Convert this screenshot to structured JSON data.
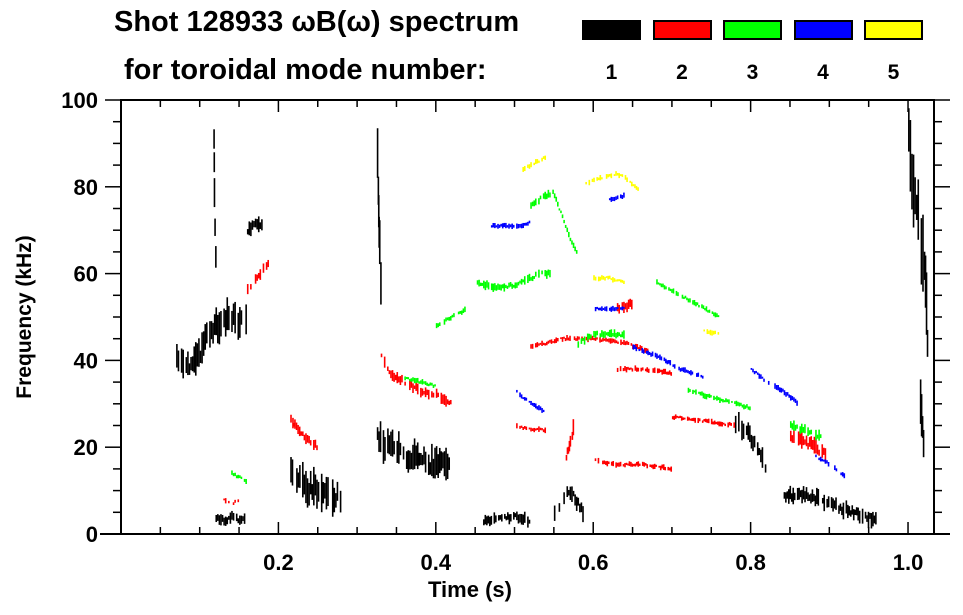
{
  "chart_data": {
    "type": "scatter",
    "title": "Shot 128933 ωB(ω) spectrum",
    "subtitle": "for toroidal mode number:",
    "xlabel": "Time (s)",
    "ylabel": "Frequency (kHz)",
    "xlim": [
      0,
      1.033
    ],
    "ylim": [
      0,
      100
    ],
    "xticks": [
      "0.2",
      "0.4",
      "0.6",
      "0.8",
      "1.0"
    ],
    "xtick_values": [
      0.2,
      0.4,
      0.6,
      0.8,
      1.0
    ],
    "yticks": [
      "0",
      "20",
      "40",
      "60",
      "80",
      "100"
    ],
    "ytick_values": [
      0,
      20,
      40,
      60,
      80,
      100
    ],
    "grid": false,
    "legend": {
      "placement": "top-right",
      "entries": [
        {
          "label": "1",
          "color": "#000000"
        },
        {
          "label": "2",
          "color": "#ff0000"
        },
        {
          "label": "3",
          "color": "#00ff00"
        },
        {
          "label": "4",
          "color": "#0000ff"
        },
        {
          "label": "5",
          "color": "#ffff00"
        }
      ]
    },
    "series": [
      {
        "name": "1",
        "color": "#000000",
        "tracks": [
          {
            "t": [
              0.07,
              0.09,
              0.1,
              0.11,
              0.12,
              0.13,
              0.14,
              0.15,
              0.16
            ],
            "f": [
              40,
              39,
              42,
              46,
              48,
              49,
              50,
              48,
              51
            ],
            "spread": 6
          },
          {
            "t": [
              0.117,
              0.118,
              0.12
            ],
            "f": [
              95,
              75,
              60
            ],
            "spread": 10
          },
          {
            "t": [
              0.16,
              0.17,
              0.18
            ],
            "f": [
              70,
              71,
              72
            ],
            "spread": 3
          },
          {
            "t": [
              0.12,
              0.13,
              0.14,
              0.15,
              0.16
            ],
            "f": [
              4,
              3,
              4,
              3,
              4
            ],
            "spread": 2
          },
          {
            "t": [
              0.215,
              0.23,
              0.25,
              0.27,
              0.28
            ],
            "f": [
              14,
              11,
              10,
              9,
              9
            ],
            "spread": 7
          },
          {
            "t": [
              0.325,
              0.327,
              0.33
            ],
            "f": [
              88,
              70,
              50
            ],
            "spread": 12
          },
          {
            "t": [
              0.325,
              0.34,
              0.36,
              0.38,
              0.4,
              0.42
            ],
            "f": [
              22,
              20,
              18,
              17,
              16,
              15
            ],
            "spread": 6
          },
          {
            "t": [
              0.55,
              0.56,
              0.57,
              0.58,
              0.59
            ],
            "f": [
              5,
              8,
              10,
              7,
              4
            ],
            "spread": 3
          },
          {
            "t": [
              0.46,
              0.5,
              0.52
            ],
            "f": [
              3,
              4,
              3
            ],
            "spread": 2
          },
          {
            "t": [
              0.78,
              0.8,
              0.82
            ],
            "f": [
              26,
              22,
              15
            ],
            "spread": 4
          },
          {
            "t": [
              0.84,
              0.87,
              0.9,
              0.93,
              0.96
            ],
            "f": [
              9,
              9,
              7,
              5,
              3
            ],
            "spread": 3
          },
          {
            "t": [
              1.0,
              1.01,
              1.02,
              1.025
            ],
            "f": [
              90,
              75,
              60,
              40
            ],
            "spread": 14
          },
          {
            "t": [
              1.015,
              1.02
            ],
            "f": [
              30,
              20
            ],
            "spread": 8
          }
        ]
      },
      {
        "name": "2",
        "color": "#ff0000",
        "tracks": [
          {
            "t": [
              0.16,
              0.17,
              0.18,
              0.19
            ],
            "f": [
              56,
              59,
              61,
              63
            ],
            "spread": 2
          },
          {
            "t": [
              0.13,
              0.14,
              0.15
            ],
            "f": [
              8,
              7,
              8
            ],
            "spread": 1
          },
          {
            "t": [
              0.215,
              0.22,
              0.23,
              0.24,
              0.25
            ],
            "f": [
              27,
              25,
              23,
              21,
              20
            ],
            "spread": 2
          },
          {
            "t": [
              0.33,
              0.34,
              0.36,
              0.38,
              0.4,
              0.42
            ],
            "f": [
              41,
              37,
              35,
              33,
              32,
              30
            ],
            "spread": 2
          },
          {
            "t": [
              0.5,
              0.52,
              0.54
            ],
            "f": [
              25,
              24,
              24
            ],
            "spread": 1
          },
          {
            "t": [
              0.52,
              0.54,
              0.56,
              0.6,
              0.64,
              0.67
            ],
            "f": [
              43,
              44,
              45,
              45,
              44,
              42
            ],
            "spread": 1
          },
          {
            "t": [
              0.565,
              0.57,
              0.575
            ],
            "f": [
              18,
              21,
              25
            ],
            "spread": 3
          },
          {
            "t": [
              0.6,
              0.63,
              0.66,
              0.7
            ],
            "f": [
              17,
              16,
              16,
              15
            ],
            "spread": 1
          },
          {
            "t": [
              0.63,
              0.66,
              0.7
            ],
            "f": [
              38,
              38,
              37
            ],
            "spread": 1
          },
          {
            "t": [
              0.7,
              0.74,
              0.78
            ],
            "f": [
              27,
              26,
              25
            ],
            "spread": 1
          },
          {
            "t": [
              0.85,
              0.87,
              0.89,
              0.9
            ],
            "f": [
              22,
              21,
              19,
              16
            ],
            "spread": 3
          },
          {
            "t": [
              0.63,
              0.65
            ],
            "f": [
              52,
              53
            ],
            "spread": 2
          }
        ]
      },
      {
        "name": "3",
        "color": "#00ff00",
        "tracks": [
          {
            "t": [
              0.45,
              0.47,
              0.49,
              0.51,
              0.53,
              0.55
            ],
            "f": [
              58,
              57,
              57,
              58,
              60,
              60
            ],
            "spread": 1.5
          },
          {
            "t": [
              0.52,
              0.54,
              0.55
            ],
            "f": [
              76,
              78,
              79
            ],
            "spread": 1.5
          },
          {
            "t": [
              0.55,
              0.56,
              0.57,
              0.58
            ],
            "f": [
              78,
              73,
              68,
              64
            ],
            "spread": 1
          },
          {
            "t": [
              0.58,
              0.6,
              0.62,
              0.64
            ],
            "f": [
              44,
              46,
              46,
              46
            ],
            "spread": 1.5
          },
          {
            "t": [
              0.4,
              0.42,
              0.44
            ],
            "f": [
              48,
              50,
              52
            ],
            "spread": 1
          },
          {
            "t": [
              0.36,
              0.38,
              0.4
            ],
            "f": [
              36,
              35,
              34
            ],
            "spread": 1
          },
          {
            "t": [
              0.68,
              0.72,
              0.76
            ],
            "f": [
              58,
              54,
              50
            ],
            "spread": 1
          },
          {
            "t": [
              0.72,
              0.76,
              0.8
            ],
            "f": [
              33,
              31,
              29
            ],
            "spread": 1
          },
          {
            "t": [
              0.85,
              0.87,
              0.89
            ],
            "f": [
              25,
              24,
              22
            ],
            "spread": 2
          },
          {
            "t": [
              0.14,
              0.15,
              0.16
            ],
            "f": [
              14,
              13,
              12
            ],
            "spread": 1
          }
        ]
      },
      {
        "name": "4",
        "color": "#0000ff",
        "tracks": [
          {
            "t": [
              0.47,
              0.49,
              0.51,
              0.52
            ],
            "f": [
              71,
              71,
              71,
              72
            ],
            "spread": 1
          },
          {
            "t": [
              0.6,
              0.62,
              0.64
            ],
            "f": [
              52,
              52,
              52
            ],
            "spread": 1
          },
          {
            "t": [
              0.65,
              0.68,
              0.71,
              0.74
            ],
            "f": [
              43,
              41,
              38,
              36
            ],
            "spread": 1
          },
          {
            "t": [
              0.5,
              0.52,
              0.54
            ],
            "f": [
              33,
              30,
              28
            ],
            "spread": 1
          },
          {
            "t": [
              0.8,
              0.82,
              0.84,
              0.86
            ],
            "f": [
              38,
              35,
              33,
              30
            ],
            "spread": 1
          },
          {
            "t": [
              0.88,
              0.9,
              0.92
            ],
            "f": [
              18,
              16,
              13
            ],
            "spread": 1
          },
          {
            "t": [
              0.62,
              0.64
            ],
            "f": [
              77,
              78
            ],
            "spread": 1
          }
        ]
      },
      {
        "name": "5",
        "color": "#ffff00",
        "tracks": [
          {
            "t": [
              0.51,
              0.53,
              0.54
            ],
            "f": [
              84,
              86,
              87
            ],
            "spread": 1
          },
          {
            "t": [
              0.59,
              0.61,
              0.63,
              0.64,
              0.66
            ],
            "f": [
              81,
              82,
              83,
              82,
              79
            ],
            "spread": 1
          },
          {
            "t": [
              0.6,
              0.62,
              0.64
            ],
            "f": [
              59,
              59,
              58
            ],
            "spread": 1
          },
          {
            "t": [
              0.74,
              0.76
            ],
            "f": [
              47,
              46
            ],
            "spread": 1
          }
        ]
      }
    ]
  }
}
